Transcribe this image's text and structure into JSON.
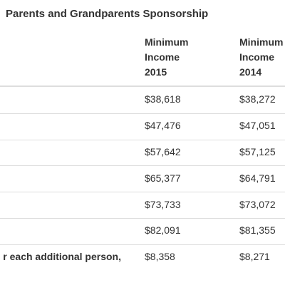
{
  "title": "Parents and Grandparents Sponsorship",
  "table": {
    "headers": [
      "Minimum Income 2015",
      "Minimum Income 2014"
    ],
    "rows": [
      {
        "cells": [
          "$38,618",
          "$38,272"
        ]
      },
      {
        "cells": [
          "$47,476",
          "$47,051"
        ]
      },
      {
        "cells": [
          "$57,642",
          "$57,125"
        ]
      },
      {
        "cells": [
          "$65,377",
          "$64,791"
        ]
      },
      {
        "cells": [
          "$73,733",
          "$73,072"
        ]
      },
      {
        "cells": [
          "$82,091",
          "$81,355"
        ]
      },
      {
        "label": "r each additional person,",
        "cells": [
          "$8,358",
          "$8,271"
        ]
      }
    ]
  }
}
